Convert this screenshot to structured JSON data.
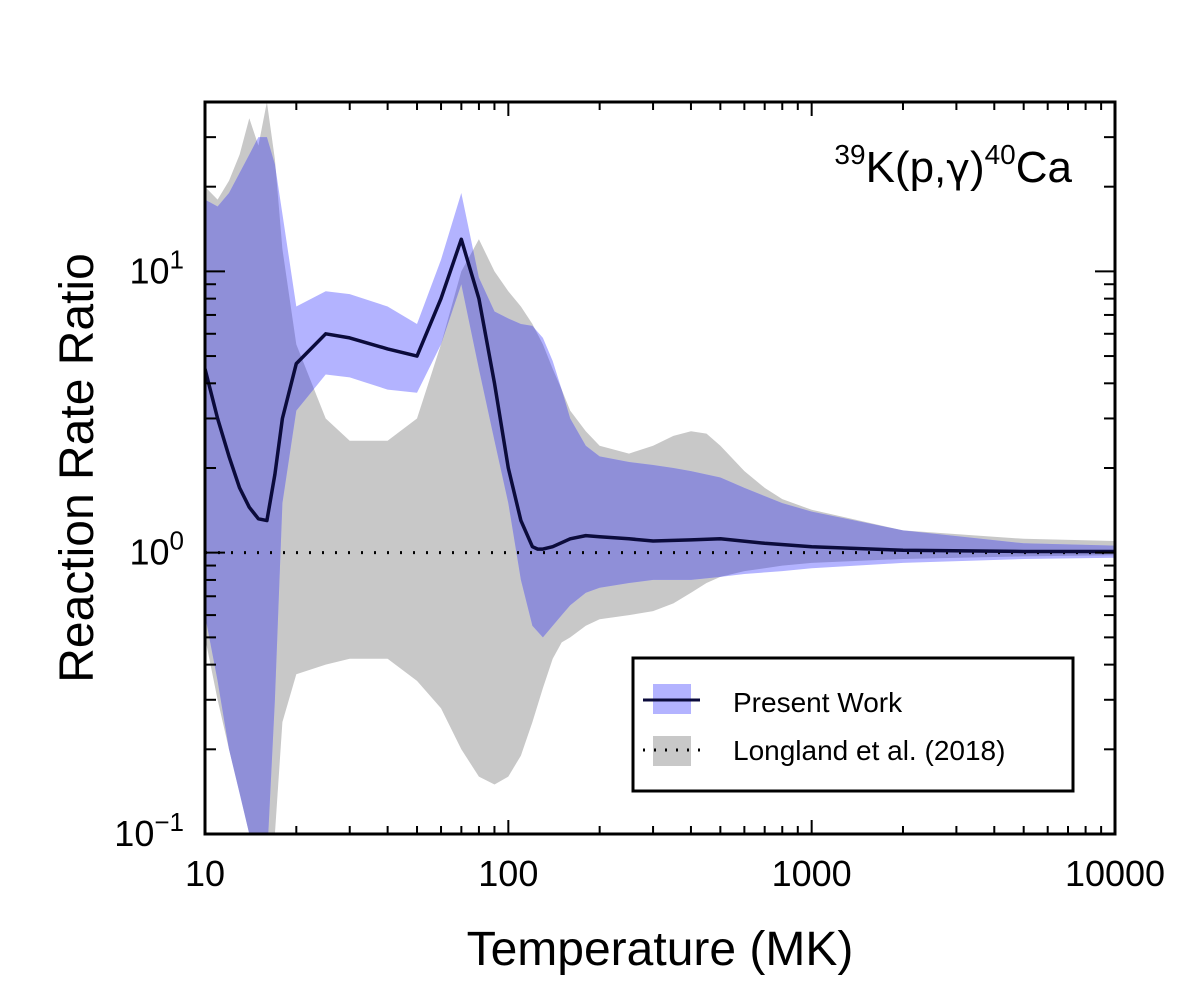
{
  "chart_data": {
    "type": "area",
    "xlabel": "Temperature (MK)",
    "ylabel": "Reaction Rate Ratio",
    "xscale": "log",
    "yscale": "log",
    "xlim": [
      10,
      10000
    ],
    "ylim": [
      0.1,
      40
    ],
    "grid": false,
    "legend_position": "bottom-right",
    "annotation": {
      "sup1": "39",
      "base1": "K(p,",
      "gamma": "γ",
      "base2": ")",
      "sup2": "40",
      "base3": "Ca"
    },
    "x_ticks": [
      {
        "value": 10,
        "label": "10"
      },
      {
        "value": 100,
        "label": "100"
      },
      {
        "value": 1000,
        "label": "1000"
      },
      {
        "value": 10000,
        "label": "10000"
      }
    ],
    "y_ticks": [
      {
        "value": 0.1,
        "base": "10",
        "exp": "−1"
      },
      {
        "value": 1,
        "base": "10",
        "exp": "0"
      },
      {
        "value": 10,
        "base": "10",
        "exp": "1"
      }
    ],
    "colors": {
      "present_band": "#b3b3ff",
      "longland_band": "#c8c8c8",
      "overlap": "#8f8fd8",
      "median_line": "#0b0b3b",
      "reference_line": "#000000"
    },
    "series": [
      {
        "name": "Longland et al. (2018)",
        "kind": "band",
        "x": [
          10,
          11,
          12,
          13,
          14,
          15,
          16,
          17,
          18,
          20,
          25,
          30,
          40,
          50,
          60,
          70,
          80,
          90,
          100,
          110,
          120,
          130,
          140,
          150,
          160,
          180,
          200,
          250,
          300,
          350,
          400,
          450,
          500,
          600,
          700,
          800,
          1000,
          2000,
          5000,
          10000
        ],
        "upper": [
          20,
          18,
          21,
          26,
          35,
          28,
          40,
          25,
          12,
          5.5,
          3.0,
          2.5,
          2.5,
          3.0,
          5.5,
          10.0,
          13.0,
          10.0,
          8.5,
          7.5,
          6.5,
          5.5,
          4.5,
          3.8,
          3.2,
          2.7,
          2.4,
          2.25,
          2.4,
          2.6,
          2.7,
          2.65,
          2.4,
          1.95,
          1.7,
          1.55,
          1.42,
          1.2,
          1.12,
          1.1
        ],
        "lower": [
          0.5,
          0.3,
          0.2,
          0.14,
          0.1,
          0.1,
          0.08,
          0.1,
          0.25,
          0.37,
          0.4,
          0.42,
          0.42,
          0.35,
          0.28,
          0.2,
          0.16,
          0.15,
          0.16,
          0.19,
          0.25,
          0.33,
          0.42,
          0.48,
          0.5,
          0.55,
          0.58,
          0.6,
          0.62,
          0.66,
          0.72,
          0.78,
          0.82,
          0.86,
          0.88,
          0.9,
          0.92,
          0.95,
          0.97,
          0.98
        ]
      },
      {
        "name": "Present Work",
        "kind": "band",
        "x": [
          10,
          11,
          12,
          14,
          15,
          16,
          17,
          18,
          20,
          25,
          30,
          40,
          50,
          60,
          70,
          80,
          90,
          100,
          110,
          120,
          130,
          140,
          150,
          160,
          180,
          200,
          250,
          300,
          350,
          400,
          500,
          600,
          800,
          1000,
          2000,
          5000,
          10000
        ],
        "upper": [
          18,
          17,
          19,
          26,
          30,
          30,
          24,
          16,
          7.5,
          8.5,
          8.3,
          7.5,
          6.5,
          11,
          19,
          9.5,
          7.2,
          6.8,
          6.5,
          6.4,
          5.8,
          4.8,
          3.8,
          3.0,
          2.4,
          2.2,
          2.1,
          2.05,
          2.0,
          1.95,
          1.85,
          1.7,
          1.5,
          1.4,
          1.2,
          1.08,
          1.06
        ],
        "lower": [
          0.6,
          0.35,
          0.2,
          0.1,
          0.08,
          0.08,
          0.3,
          1.5,
          3.2,
          4.3,
          4.2,
          3.8,
          3.7,
          5.5,
          9.0,
          4.5,
          2.5,
          1.5,
          0.8,
          0.55,
          0.5,
          0.55,
          0.6,
          0.65,
          0.72,
          0.75,
          0.78,
          0.8,
          0.8,
          0.8,
          0.82,
          0.84,
          0.86,
          0.88,
          0.92,
          0.95,
          0.96
        ]
      },
      {
        "name": "Present Work",
        "kind": "line",
        "x": [
          10,
          11,
          12,
          13,
          14,
          15,
          16,
          17,
          18,
          20,
          25,
          30,
          40,
          50,
          60,
          70,
          80,
          90,
          100,
          110,
          120,
          125,
          130,
          140,
          160,
          180,
          200,
          250,
          300,
          400,
          500,
          700,
          1000,
          2000,
          5000,
          10000
        ],
        "y": [
          4.5,
          3.0,
          2.2,
          1.7,
          1.45,
          1.32,
          1.3,
          1.9,
          3.0,
          4.7,
          6.0,
          5.8,
          5.3,
          5.0,
          8.0,
          13.0,
          8.0,
          4.0,
          2.0,
          1.3,
          1.05,
          1.03,
          1.03,
          1.05,
          1.12,
          1.15,
          1.14,
          1.12,
          1.1,
          1.11,
          1.12,
          1.08,
          1.05,
          1.02,
          1.01,
          1.01
        ]
      },
      {
        "name": "Longland et al. (2018)",
        "kind": "reference",
        "x": [
          10,
          10000
        ],
        "y": [
          1,
          1
        ]
      }
    ],
    "legend": [
      {
        "label": "Present Work"
      },
      {
        "label": "Longland et al. (2018)"
      }
    ]
  }
}
